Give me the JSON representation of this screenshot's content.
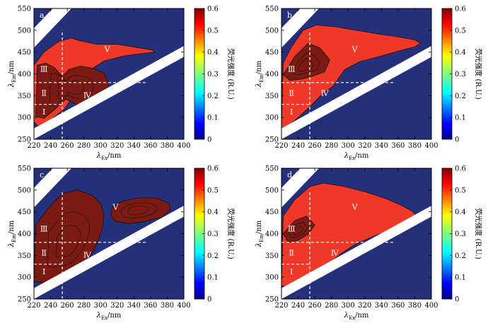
{
  "figure": {
    "colors": {
      "background_blue": "#25307a",
      "region_red": "#ef3828",
      "peak_darkred": "#7a1a12",
      "scatter_band": "#ffffff",
      "divider": "#ffffff"
    }
  },
  "chart_data": [
    {
      "type": "heatmap",
      "panel_label": "a",
      "xlabel": "λEx/nm",
      "ylabel": "λEm/nm",
      "xlim": [
        220,
        400
      ],
      "ylim": [
        250,
        550
      ],
      "xticks": [
        220,
        240,
        260,
        280,
        300,
        320,
        340,
        360,
        380,
        400
      ],
      "yticks": [
        250,
        300,
        350,
        400,
        450,
        500,
        550
      ],
      "colorbar": {
        "label": "荧光强度 (R.U.)",
        "range": [
          0,
          0.6
        ],
        "ticks": [
          0,
          0.1,
          0.2,
          0.3,
          0.4,
          0.5,
          0.6
        ]
      },
      "region_dividers": {
        "ex_line": 254,
        "em_lines": [
          330,
          380
        ],
        "ex_extent": [
          220,
          355
        ]
      },
      "region_labels": [
        {
          "text": "Ⅰ",
          "ex": 232,
          "em": 312
        },
        {
          "text": "Ⅱ",
          "ex": 232,
          "em": 355
        },
        {
          "text": "Ⅲ",
          "ex": 232,
          "em": 410
        },
        {
          "text": "Ⅳ",
          "ex": 284,
          "em": 350
        },
        {
          "text": "Ⅴ",
          "ex": 308,
          "em": 455
        }
      ],
      "fluorescence_regions": [
        {
          "level": 0.5,
          "ex": [
            220,
            220,
            232,
            250,
            265,
            275,
            295,
            320,
            345,
            362,
            365,
            352,
            330,
            305,
            288,
            278,
            266,
            256,
            238,
            225,
            220
          ],
          "em": [
            290,
            420,
            450,
            475,
            482,
            476,
            468,
            468,
            460,
            455,
            450,
            447,
            442,
            430,
            410,
            380,
            345,
            318,
            292,
            280,
            290
          ]
        },
        {
          "level": 0.6,
          "ex": [
            222,
            232,
            246,
            258,
            272,
            288,
            300,
            308,
            310,
            304,
            292,
            276,
            262,
            254,
            244,
            234,
            224,
            222
          ],
          "em": [
            302,
            298,
            320,
            342,
            330,
            328,
            338,
            355,
            380,
            402,
            412,
            418,
            410,
            395,
            415,
            425,
            420,
            302
          ]
        }
      ]
    },
    {
      "type": "heatmap",
      "panel_label": "b",
      "xlabel": "λEx/nm",
      "ylabel": "λEm/nm",
      "xlim": [
        220,
        400
      ],
      "ylim": [
        250,
        550
      ],
      "xticks": [
        220,
        240,
        260,
        280,
        300,
        320,
        340,
        360,
        380,
        400
      ],
      "yticks": [
        250,
        300,
        350,
        400,
        450,
        500,
        550
      ],
      "colorbar": {
        "label": "荧光强度 (R.U.)",
        "range": [
          0,
          0.6
        ],
        "ticks": [
          0,
          0.1,
          0.2,
          0.3,
          0.4,
          0.5,
          0.6
        ]
      },
      "region_dividers": {
        "ex_line": 254,
        "em_lines": [
          330,
          380
        ],
        "ex_extent": [
          220,
          355
        ]
      },
      "region_labels": [
        {
          "text": "Ⅰ",
          "ex": 232,
          "em": 312
        },
        {
          "text": "Ⅱ",
          "ex": 232,
          "em": 355
        },
        {
          "text": "Ⅲ",
          "ex": 232,
          "em": 410
        },
        {
          "text": "Ⅳ",
          "ex": 272,
          "em": 355
        },
        {
          "text": "Ⅴ",
          "ex": 308,
          "em": 455
        }
      ],
      "fluorescence_regions": [
        {
          "level": 0.5,
          "ex": [
            220,
            222,
            232,
            246,
            262,
            285,
            310,
            335,
            360,
            380,
            387,
            380,
            360,
            338,
            314,
            296,
            282,
            268,
            256,
            240,
            228,
            220
          ],
          "em": [
            275,
            425,
            462,
            500,
            512,
            508,
            500,
            492,
            485,
            478,
            470,
            462,
            452,
            440,
            428,
            410,
            372,
            352,
            328,
            300,
            280,
            275
          ]
        },
        {
          "level": 0.6,
          "ex": [
            222,
            236,
            252,
            266,
            278,
            272,
            258,
            244,
            230,
            222
          ],
          "em": [
            398,
            440,
            470,
            460,
            432,
            405,
            395,
            388,
            385,
            398
          ]
        }
      ]
    },
    {
      "type": "heatmap",
      "panel_label": "c",
      "xlabel": "λEx/nm",
      "ylabel": "λEm/nm",
      "xlim": [
        220,
        400
      ],
      "ylim": [
        250,
        550
      ],
      "xticks": [
        220,
        240,
        260,
        280,
        300,
        320,
        340,
        360,
        380,
        400
      ],
      "yticks": [
        250,
        300,
        350,
        400,
        450,
        500,
        550
      ],
      "colorbar": {
        "label": "荧光强度 (R.U.)",
        "range": [
          0,
          0.6
        ],
        "ticks": [
          0,
          0.1,
          0.2,
          0.3,
          0.4,
          0.5,
          0.6
        ]
      },
      "region_dividers": {
        "ex_line": 254,
        "em_lines": [
          330,
          380
        ],
        "ex_extent": [
          220,
          355
        ]
      },
      "region_labels": [
        {
          "text": "Ⅰ",
          "ex": 232,
          "em": 312
        },
        {
          "text": "Ⅱ",
          "ex": 232,
          "em": 355
        },
        {
          "text": "Ⅲ",
          "ex": 232,
          "em": 410
        },
        {
          "text": "Ⅳ",
          "ex": 284,
          "em": 350
        },
        {
          "text": "Ⅴ",
          "ex": 318,
          "em": 460
        }
      ],
      "fluorescence_regions": [
        {
          "level": 0.6,
          "ex": [
            220,
            222,
            236,
            254,
            272,
            290,
            300,
            304,
            302,
            296,
            288,
            278,
            266,
            256,
            244,
            232,
            222,
            220
          ],
          "em": [
            290,
            420,
            455,
            492,
            500,
            488,
            470,
            445,
            410,
            380,
            350,
            325,
            302,
            295,
            290,
            288,
            290,
            290
          ]
        },
        {
          "level": 0.6,
          "ex": [
            314,
            326,
            346,
            366,
            382,
            384,
            374,
            354,
            334,
            318,
            312,
            314
          ],
          "em": [
            460,
            474,
            482,
            482,
            470,
            455,
            438,
            428,
            423,
            428,
            442,
            460
          ]
        }
      ]
    },
    {
      "type": "heatmap",
      "panel_label": "d",
      "xlabel": "λEx/nm",
      "ylabel": "λEm/nm",
      "xlim": [
        220,
        400
      ],
      "ylim": [
        250,
        550
      ],
      "xticks": [
        220,
        240,
        260,
        280,
        300,
        320,
        340,
        360,
        380,
        400
      ],
      "yticks": [
        250,
        300,
        350,
        400,
        450,
        500,
        550
      ],
      "colorbar": {
        "label": "荧光强度 (R.U.)",
        "range": [
          0,
          0.6
        ],
        "ticks": [
          0,
          0.1,
          0.2,
          0.3,
          0.4,
          0.5,
          0.6
        ]
      },
      "region_dividers": {
        "ex_line": 254,
        "em_lines": [
          330,
          380
        ],
        "ex_extent": [
          220,
          355
        ]
      },
      "region_labels": [
        {
          "text": "Ⅰ",
          "ex": 232,
          "em": 312
        },
        {
          "text": "Ⅱ",
          "ex": 232,
          "em": 355
        },
        {
          "text": "Ⅲ",
          "ex": 232,
          "em": 410
        },
        {
          "text": "Ⅳ",
          "ex": 284,
          "em": 355
        },
        {
          "text": "Ⅴ",
          "ex": 308,
          "em": 460
        }
      ],
      "fluorescence_regions": [
        {
          "level": 0.5,
          "ex": [
            220,
            222,
            236,
            254,
            270,
            296,
            322,
            346,
            364,
            378,
            382,
            374,
            356,
            332,
            308,
            290,
            276,
            264,
            252,
            238,
            226,
            220
          ],
          "em": [
            280,
            440,
            478,
            508,
            516,
            508,
            495,
            480,
            465,
            450,
            440,
            428,
            412,
            395,
            375,
            352,
            328,
            308,
            292,
            282,
            278,
            280
          ]
        },
        {
          "level": 0.6,
          "ex": [
            222,
            236,
            250,
            260,
            252,
            240,
            228,
            222
          ],
          "em": [
            400,
            430,
            440,
            420,
            398,
            385,
            380,
            400
          ]
        }
      ]
    }
  ]
}
